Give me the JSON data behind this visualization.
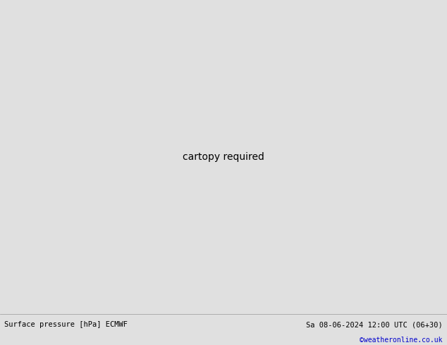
{
  "title_left": "Surface pressure [hPa] ECMWF",
  "title_right": "Sa 08-06-2024 12:00 UTC (06+30)",
  "credit": "©weatheronline.co.uk",
  "ocean_color": "#d8d8d8",
  "land_color": "#c8e8c0",
  "gray_color": "#a8a8a8",
  "bottom_bar_color": "#e0e0e0",
  "contour_blue": "#0000cc",
  "contour_red": "#cc0000",
  "contour_black": "#000000",
  "fig_width": 6.34,
  "fig_height": 4.9,
  "map_extent": [
    -28,
    42,
    27,
    72
  ]
}
